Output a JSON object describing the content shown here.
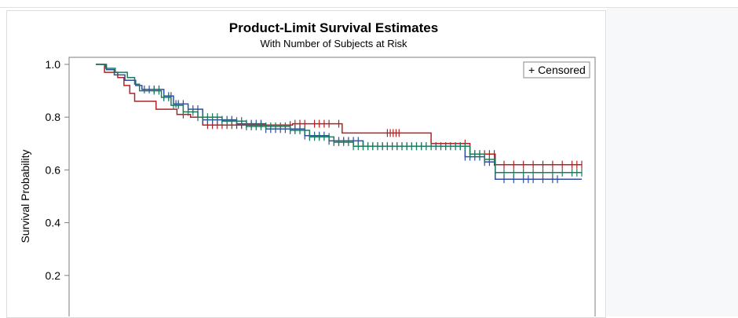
{
  "chart_data": {
    "type": "line",
    "title": "Product-Limit Survival Estimates",
    "subtitle": "With Number of Subjects at Risk",
    "ylabel": "Survival Probability",
    "xlabel": "",
    "ylim": [
      0.1,
      1.0
    ],
    "xlim": [
      0,
      100
    ],
    "y_ticks": [
      "1.0",
      "0.8",
      "0.6",
      "0.4",
      "0.2"
    ],
    "y_tick_values": [
      1.0,
      0.8,
      0.6,
      0.4,
      0.2
    ],
    "legend": {
      "label": "+ Censored",
      "placement": "top-right"
    },
    "grid": false,
    "series": [
      {
        "color": "#b22222",
        "points": [
          [
            0,
            1.0
          ],
          [
            1.8,
            1.0
          ],
          [
            1.8,
            0.97
          ],
          [
            4.5,
            0.97
          ],
          [
            4.5,
            0.95
          ],
          [
            5.8,
            0.95
          ],
          [
            5.8,
            0.92
          ],
          [
            7,
            0.92
          ],
          [
            7,
            0.89
          ],
          [
            8,
            0.89
          ],
          [
            8,
            0.86
          ],
          [
            12.4,
            0.86
          ],
          [
            12.4,
            0.83
          ],
          [
            16.7,
            0.83
          ],
          [
            16.7,
            0.81
          ],
          [
            19.5,
            0.81
          ],
          [
            19.5,
            0.8
          ],
          [
            22,
            0.8
          ],
          [
            22,
            0.77
          ],
          [
            40.5,
            0.77
          ],
          [
            40.5,
            0.775
          ],
          [
            50.7,
            0.775
          ],
          [
            50.7,
            0.74
          ],
          [
            69,
            0.74
          ],
          [
            69,
            0.7
          ],
          [
            77,
            0.7
          ],
          [
            77,
            0.66
          ],
          [
            82.2,
            0.66
          ],
          [
            82.2,
            0.62
          ],
          [
            100,
            0.62
          ]
        ],
        "censored": [
          18,
          23,
          24,
          25,
          26,
          27,
          28,
          29,
          30,
          31,
          32,
          34,
          40,
          41,
          42,
          43,
          45,
          46,
          47,
          48,
          50,
          60,
          60.6,
          61.2,
          61.8,
          62.4,
          76,
          77,
          78,
          79,
          80,
          81,
          82,
          84,
          86,
          88,
          90,
          92,
          94,
          96,
          98,
          99,
          100
        ]
      },
      {
        "color": "#2e4d9e",
        "points": [
          [
            0,
            1.0
          ],
          [
            2.2,
            1.0
          ],
          [
            2.2,
            0.98
          ],
          [
            3.8,
            0.98
          ],
          [
            3.8,
            0.96
          ],
          [
            6,
            0.96
          ],
          [
            6,
            0.94
          ],
          [
            8.2,
            0.94
          ],
          [
            8.2,
            0.92
          ],
          [
            9.5,
            0.92
          ],
          [
            9.5,
            0.905
          ],
          [
            14,
            0.905
          ],
          [
            14,
            0.88
          ],
          [
            16,
            0.88
          ],
          [
            16,
            0.85
          ],
          [
            19,
            0.85
          ],
          [
            19,
            0.83
          ],
          [
            22,
            0.83
          ],
          [
            22,
            0.79
          ],
          [
            29,
            0.79
          ],
          [
            29,
            0.775
          ],
          [
            35,
            0.775
          ],
          [
            35,
            0.755
          ],
          [
            43,
            0.755
          ],
          [
            43,
            0.73
          ],
          [
            48,
            0.73
          ],
          [
            48,
            0.71
          ],
          [
            55,
            0.71
          ],
          [
            55,
            0.69
          ],
          [
            76,
            0.69
          ],
          [
            76,
            0.65
          ],
          [
            80,
            0.65
          ],
          [
            80,
            0.63
          ],
          [
            82.2,
            0.63
          ],
          [
            82.2,
            0.565
          ],
          [
            100,
            0.565
          ]
        ],
        "censored": [
          10,
          11,
          12,
          13,
          14,
          15,
          15.5,
          16.5,
          17,
          18,
          19,
          20,
          21,
          22,
          23,
          24,
          25,
          26,
          27,
          28,
          29,
          30,
          31,
          32,
          33,
          34,
          35,
          36,
          37,
          38,
          39,
          40,
          41,
          42,
          43,
          44,
          45,
          46,
          47,
          48,
          49,
          50,
          51,
          52,
          53,
          54,
          55,
          56,
          57,
          58,
          59,
          60,
          61,
          62,
          63,
          64,
          65,
          66,
          67,
          68,
          69,
          70,
          71,
          72,
          73,
          74,
          75,
          76,
          77,
          78,
          79,
          80,
          81,
          82,
          84,
          86,
          88,
          89,
          90,
          92,
          94,
          95
        ]
      },
      {
        "color": "#1f7a5c",
        "points": [
          [
            0,
            1.0
          ],
          [
            2,
            1.0
          ],
          [
            2,
            0.985
          ],
          [
            4,
            0.985
          ],
          [
            4,
            0.97
          ],
          [
            6.5,
            0.97
          ],
          [
            6.5,
            0.95
          ],
          [
            8,
            0.95
          ],
          [
            8,
            0.925
          ],
          [
            9,
            0.925
          ],
          [
            9,
            0.9
          ],
          [
            13.5,
            0.9
          ],
          [
            13.5,
            0.875
          ],
          [
            15.5,
            0.875
          ],
          [
            15.5,
            0.845
          ],
          [
            18,
            0.845
          ],
          [
            18,
            0.82
          ],
          [
            21,
            0.82
          ],
          [
            21,
            0.8
          ],
          [
            26,
            0.8
          ],
          [
            26,
            0.785
          ],
          [
            31,
            0.785
          ],
          [
            31,
            0.765
          ],
          [
            40,
            0.765
          ],
          [
            40,
            0.75
          ],
          [
            44,
            0.75
          ],
          [
            44,
            0.725
          ],
          [
            49,
            0.725
          ],
          [
            49,
            0.705
          ],
          [
            53,
            0.705
          ],
          [
            53,
            0.69
          ],
          [
            77,
            0.69
          ],
          [
            77,
            0.66
          ],
          [
            80,
            0.66
          ],
          [
            80,
            0.64
          ],
          [
            82.2,
            0.64
          ],
          [
            82.2,
            0.59
          ],
          [
            100,
            0.59
          ]
        ],
        "censored": [
          12,
          13,
          14,
          15,
          16,
          17,
          18,
          19,
          20,
          21,
          22,
          23,
          24,
          25,
          26,
          27,
          28,
          29,
          30,
          31,
          32,
          33,
          34,
          35,
          36,
          37,
          38,
          39,
          40,
          41,
          42,
          43,
          44,
          45,
          46,
          47,
          48,
          49,
          50,
          51,
          52,
          53,
          54,
          55,
          56,
          57,
          58,
          59,
          60,
          61,
          62,
          63,
          64,
          65,
          66,
          67,
          68,
          69,
          70,
          71,
          72,
          73,
          74,
          75,
          76,
          77,
          78,
          79,
          80,
          81,
          82,
          84,
          86,
          88,
          90,
          92,
          94,
          96,
          98,
          99,
          100
        ]
      }
    ]
  }
}
